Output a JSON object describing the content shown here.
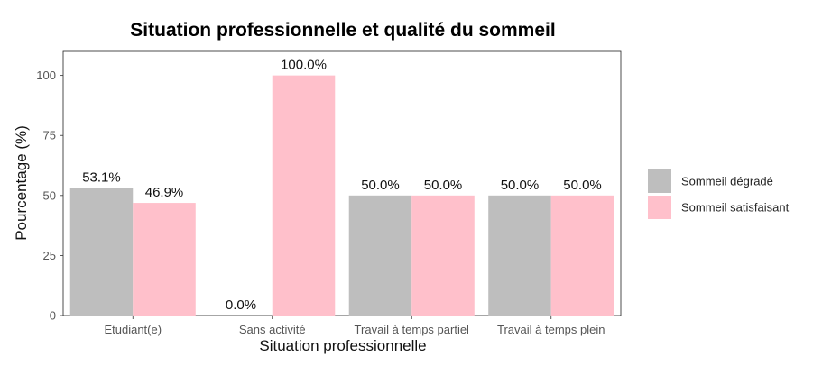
{
  "chart_data": {
    "type": "bar",
    "title": "Situation professionnelle et qualité du sommeil",
    "xlabel": "Situation professionnelle",
    "ylabel": "Pourcentage (%)",
    "ylim": [
      0,
      110
    ],
    "yticks": [
      0,
      25,
      50,
      75,
      100
    ],
    "categories": [
      "Etudiant(e)",
      "Sans activité",
      "Travail à temps partiel",
      "Travail à temps plein"
    ],
    "series": [
      {
        "name": "Sommeil dégradé",
        "color": "#bebebe",
        "values": [
          53.1,
          0.0,
          50.0,
          50.0
        ],
        "labels": [
          "53.1%",
          "0.0%",
          "50.0%",
          "50.0%"
        ]
      },
      {
        "name": "Sommeil satisfaisant",
        "color": "#ffc0cb",
        "values": [
          46.9,
          100.0,
          50.0,
          50.0
        ],
        "labels": [
          "46.9%",
          "100.0%",
          "50.0%",
          "50.0%"
        ]
      }
    ],
    "legend_position": "right",
    "grid": false
  }
}
